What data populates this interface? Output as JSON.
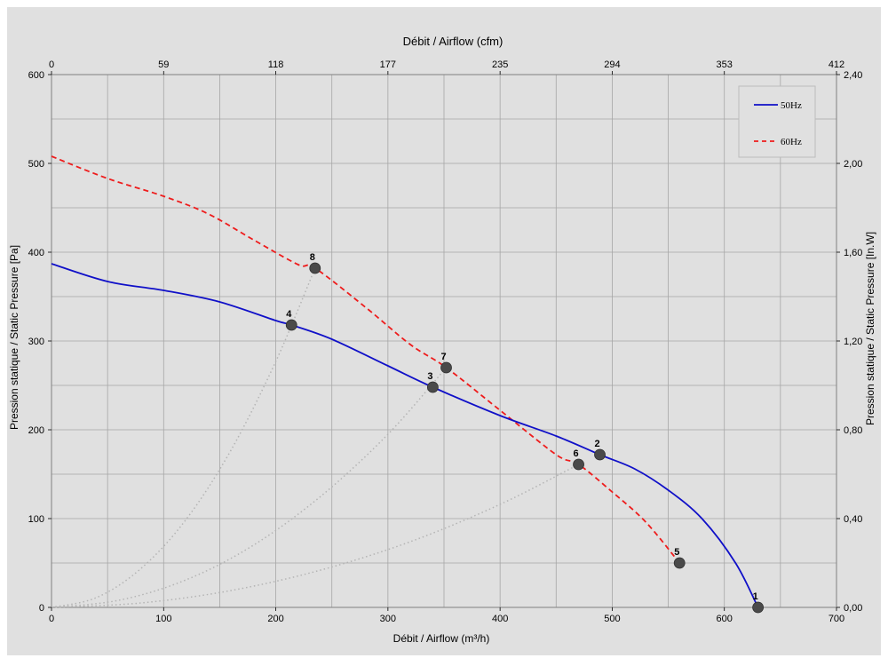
{
  "chart_data": {
    "type": "line",
    "title": "",
    "xlabel": "Débit / Airflow (m³/h)",
    "x2label": "Débit / Airflow (cfm)",
    "ylabel": "Pression statique / Static Pressure [Pa]",
    "y2label": "Pression statique / Static Pressure [In.W]",
    "xlim": [
      0,
      700
    ],
    "ylim": [
      0,
      600
    ],
    "x_ticks": [
      "0",
      "100",
      "200",
      "300",
      "400",
      "500",
      "600",
      "700"
    ],
    "x2_ticks": [
      "0",
      "59",
      "118",
      "177",
      "235",
      "294",
      "353",
      "412"
    ],
    "y_ticks": [
      "0",
      "100",
      "200",
      "300",
      "400",
      "500",
      "600"
    ],
    "y2_ticks": [
      "0,00",
      "0,40",
      "0,80",
      "1,20",
      "1,60",
      "2,00",
      "2,40"
    ],
    "grid": true,
    "legend_position": "top-right",
    "colors": {
      "background": "#e0e0e0",
      "grid": "#a6a6a6",
      "series_50": "#1010c8",
      "series_60": "#ee1c1c",
      "system": "#b4b4b4",
      "point": "#4a4a4a"
    },
    "series": [
      {
        "name": "50Hz",
        "style": "solid",
        "x": [
          0,
          50,
          100,
          150,
          200,
          214,
          250,
          300,
          340,
          400,
          450,
          489,
          520,
          550,
          580,
          610,
          630
        ],
        "y": [
          387,
          367,
          357,
          344,
          323,
          318,
          302,
          272,
          248,
          216,
          193,
          172,
          156,
          132,
          100,
          50,
          0
        ]
      },
      {
        "name": "60Hz",
        "style": "dashed",
        "x": [
          0,
          50,
          100,
          140,
          180,
          220,
          235,
          280,
          320,
          352,
          400,
          450,
          470,
          500,
          530,
          560
        ],
        "y": [
          508,
          483,
          463,
          443,
          414,
          386,
          382,
          338,
          296,
          270,
          222,
          172,
          161,
          130,
          96,
          50
        ]
      }
    ],
    "system_curves": [
      {
        "points_x": [
          0,
          40,
          80,
          120,
          160,
          200,
          235
        ],
        "points_y": [
          0,
          11,
          44,
          99,
          177,
          277,
          382
        ]
      },
      {
        "points_x": [
          0,
          60,
          120,
          180,
          240,
          300,
          352
        ],
        "points_y": [
          0,
          8,
          31,
          70,
          125,
          195,
          270
        ]
      },
      {
        "points_x": [
          0,
          80,
          160,
          240,
          320,
          400,
          470
        ],
        "points_y": [
          0,
          5,
          19,
          42,
          74,
          116,
          161
        ]
      }
    ],
    "points": [
      {
        "label": "1",
        "x": 630,
        "y": 0
      },
      {
        "label": "2",
        "x": 489,
        "y": 172
      },
      {
        "label": "3",
        "x": 340,
        "y": 248
      },
      {
        "label": "4",
        "x": 214,
        "y": 318
      },
      {
        "label": "5",
        "x": 560,
        "y": 50
      },
      {
        "label": "6",
        "x": 470,
        "y": 161
      },
      {
        "label": "7",
        "x": 352,
        "y": 270
      },
      {
        "label": "8",
        "x": 235,
        "y": 382
      }
    ]
  }
}
